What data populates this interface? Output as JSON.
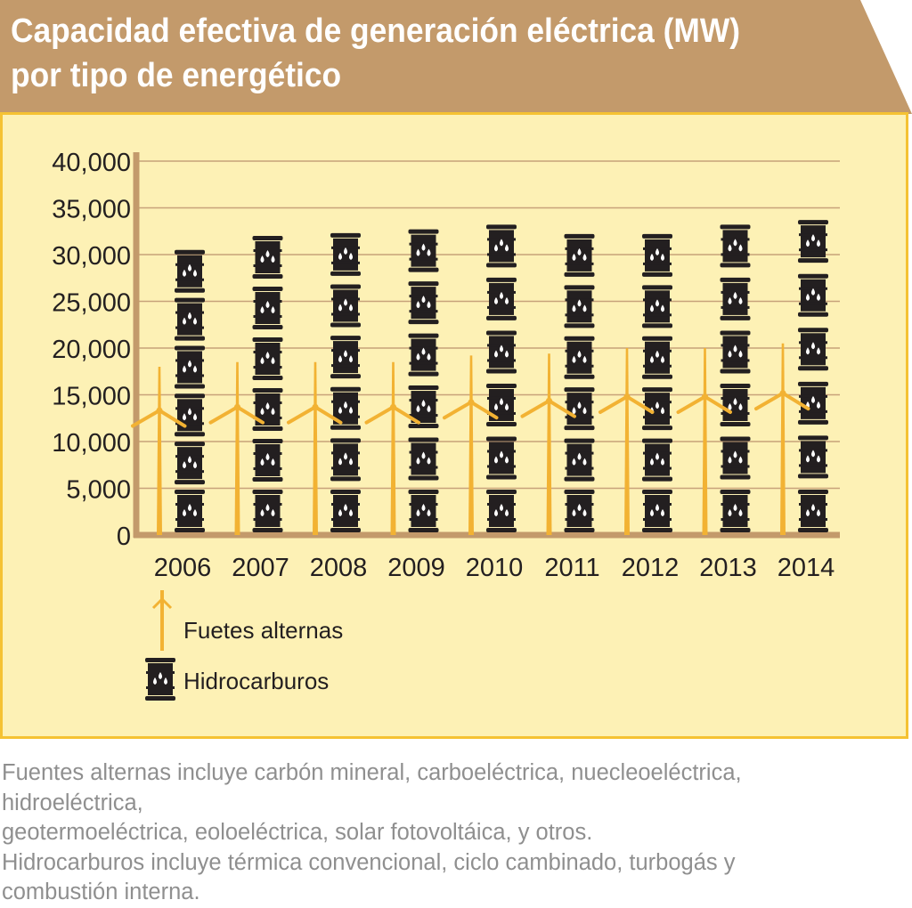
{
  "header": {
    "title_line1": "Capacidad efectiva de generación eléctrica (MW)",
    "title_line2": "por tipo de energético",
    "band_color": "#c39a6b"
  },
  "colors": {
    "panel_bg": "#fdf1b5",
    "panel_border": "#f5c233",
    "gridline": "#c7a27a",
    "axis": "#c39a6b",
    "turbine": "#f2b233",
    "barrel": "#231f20",
    "drop": "#ffffff",
    "text": "#231f20",
    "footnote": "#8f8f8f"
  },
  "chart_data": {
    "type": "bar",
    "subtype": "pictogram",
    "categories": [
      "2006",
      "2007",
      "2008",
      "2009",
      "2010",
      "2011",
      "2012",
      "2013",
      "2014"
    ],
    "series": [
      {
        "name": "Fuetes alternas",
        "icon": "wind-turbine-icon",
        "values": [
          18000,
          18500,
          18500,
          18500,
          19200,
          19400,
          20000,
          20000,
          20500
        ]
      },
      {
        "name": "Hidrocarburos",
        "icon": "oil-barrel-icon",
        "values": [
          30500,
          32000,
          32300,
          32700,
          33200,
          32200,
          32200,
          33200,
          33700
        ]
      }
    ],
    "yticks": [
      "40,000",
      "35,000",
      "30,000",
      "25,000",
      "20,000",
      "15,000",
      "10,000",
      "5,000",
      "0"
    ],
    "ytick_values": [
      40000,
      35000,
      30000,
      25000,
      20000,
      15000,
      10000,
      5000,
      0
    ],
    "ylim": [
      0,
      40000
    ],
    "xlabel": "",
    "ylabel": "",
    "grid": true,
    "legend": [
      {
        "label": "Fuetes alternas",
        "icon": "wind-turbine-icon"
      },
      {
        "label": "Hidrocarburos",
        "icon": "oil-barrel-icon"
      }
    ],
    "legend_position": "bottom-left"
  },
  "footnote": {
    "line1": "Fuentes alternas incluye carbón mineral, carboeléctrica, nuecleoeléctrica,",
    "line2": "hidroeléctrica,",
    "line3": "geotermoeléctrica, eoloeléctrica, solar fotovoltáica, y otros.",
    "line4": "Hidrocarburos incluye térmica convencional, ciclo cambinado, turbogás y",
    "line5": "combustión interna."
  }
}
